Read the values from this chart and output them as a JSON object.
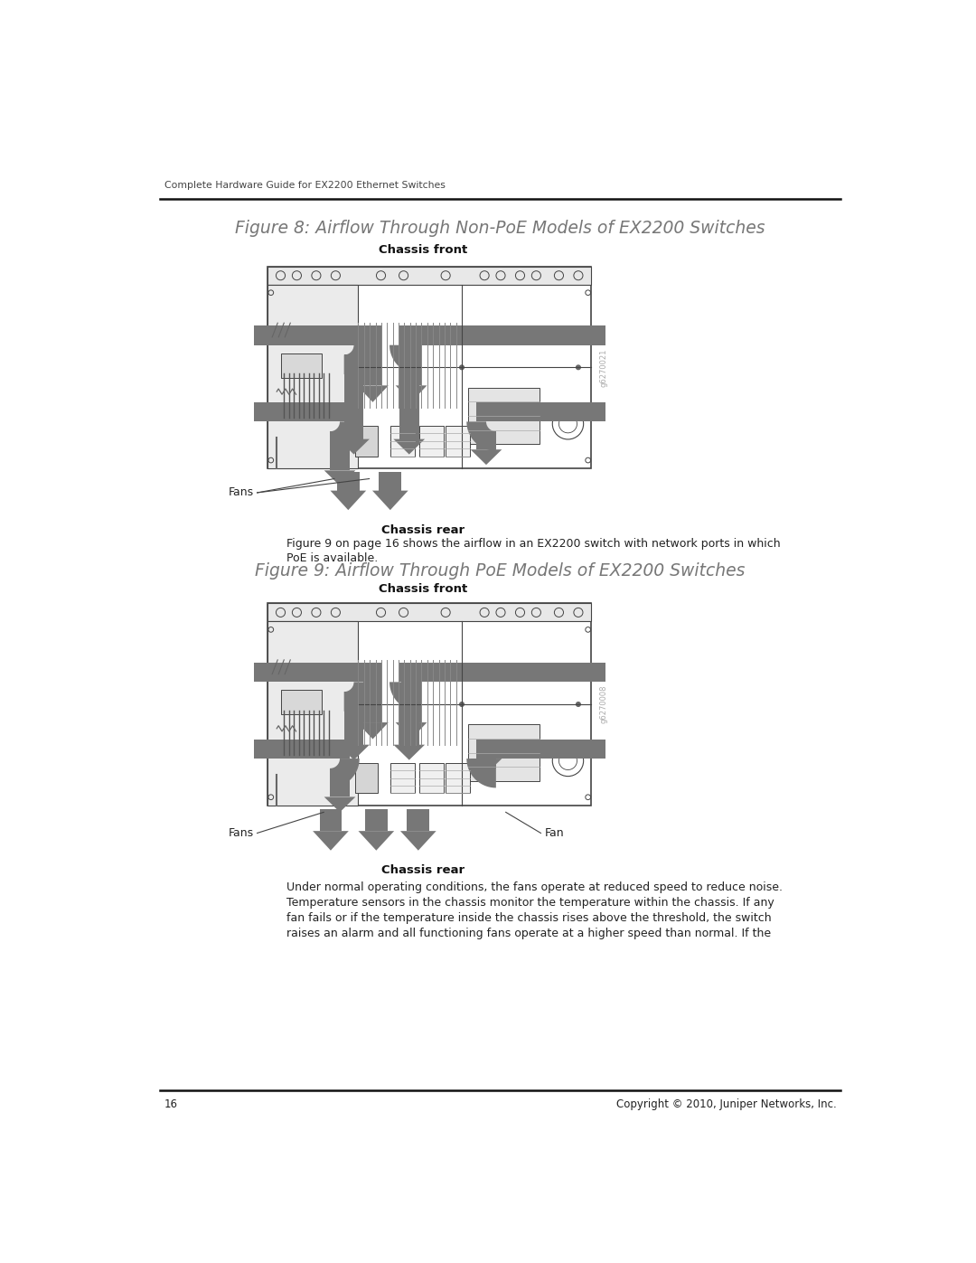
{
  "page_width": 10.8,
  "page_height": 13.97,
  "bg_color": "#ffffff",
  "header_text": "Complete Hardware Guide for EX2200 Ethernet Switches",
  "footer_page": "16",
  "footer_copyright": "Copyright © 2010, Juniper Networks, Inc.",
  "figure1_title": "Figure 8: Airflow Through Non-PoE Models of EX2200 Switches",
  "figure2_title": "Figure 9: Airflow Through PoE Models of EX2200 Switches",
  "chassis_front": "Chassis front",
  "chassis_rear": "Chassis rear",
  "fans_label": "Fans",
  "fan_label": "Fan",
  "body_text_line1": "Figure 9 on page 16 shows the airflow in an EX2200 switch with network ports in which",
  "body_text_line2": "PoE is available.",
  "body_text2_line1": "Under normal operating conditions, the fans operate at reduced speed to reduce noise.",
  "body_text2_line2": "Temperature sensors in the chassis monitor the temperature within the chassis. If any",
  "body_text2_line3": "fan fails or if the temperature inside the chassis rises above the threshold, the switch",
  "body_text2_line4": "raises an alarm and all functioning fans operate at a higher speed than normal. If the",
  "arrow_color": "#777777",
  "chassis_line_color": "#444444",
  "tag1": "g6270021",
  "tag2": "g6270008"
}
